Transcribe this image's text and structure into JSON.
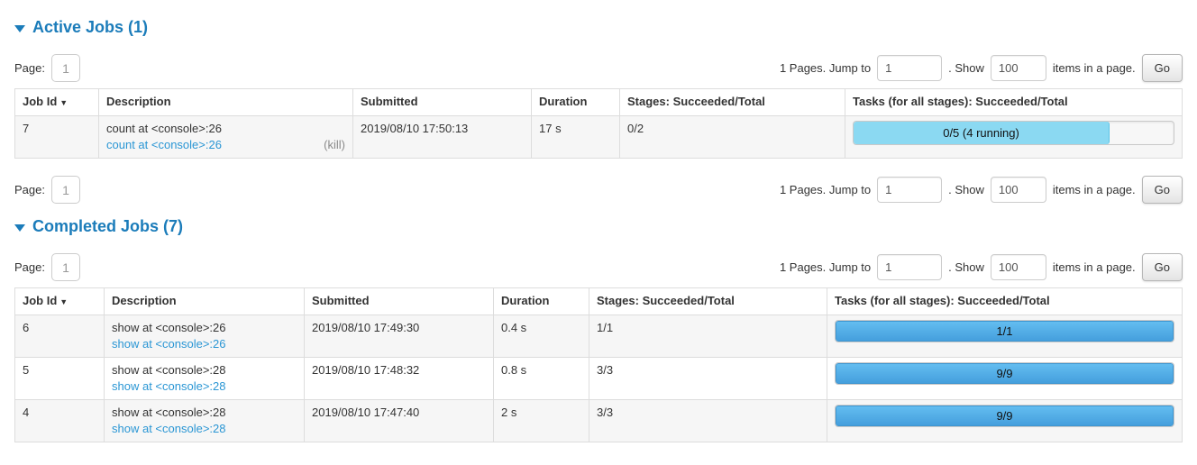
{
  "sections": {
    "active": {
      "title": "Active Jobs (1)"
    },
    "completed": {
      "title": "Completed Jobs (7)"
    }
  },
  "pagination": {
    "page_label": "Page:",
    "page_value": "1",
    "pages_text": "1 Pages. Jump to",
    "jump_value": "1",
    "show_text": ". Show",
    "show_value": "100",
    "items_text": "items in a page.",
    "go_label": "Go"
  },
  "active_table": {
    "sort_indicator": "▼",
    "headers": [
      "Job Id",
      "Description",
      "Submitted",
      "Duration",
      "Stages: Succeeded/Total",
      "Tasks (for all stages): Succeeded/Total"
    ],
    "rows": [
      {
        "job_id": "7",
        "description": "count at <console>:26",
        "description_link": "count at <console>:26",
        "kill": "(kill)",
        "submitted": "2019/08/10 17:50:13",
        "duration": "17 s",
        "stages": "0/2",
        "tasks_label": "0/5 (4 running)",
        "progress_pct": 80
      }
    ]
  },
  "completed_table": {
    "sort_indicator": "▼",
    "headers": [
      "Job Id",
      "Description",
      "Submitted",
      "Duration",
      "Stages: Succeeded/Total",
      "Tasks (for all stages): Succeeded/Total"
    ],
    "rows": [
      {
        "job_id": "6",
        "description": "show at <console>:26",
        "description_link": "show at <console>:26",
        "submitted": "2019/08/10 17:49:30",
        "duration": "0.4 s",
        "stages": "1/1",
        "tasks_label": "1/1",
        "progress_pct": 100
      },
      {
        "job_id": "5",
        "description": "show at <console>:28",
        "description_link": "show at <console>:28",
        "submitted": "2019/08/10 17:48:32",
        "duration": "0.8 s",
        "stages": "3/3",
        "tasks_label": "9/9",
        "progress_pct": 100
      },
      {
        "job_id": "4",
        "description": "show at <console>:28",
        "description_link": "show at <console>:28",
        "submitted": "2019/08/10 17:47:40",
        "duration": "2 s",
        "stages": "3/3",
        "tasks_label": "9/9",
        "progress_pct": 100
      }
    ]
  },
  "colors": {
    "section_title_blue": "#1b7cba",
    "link_blue": "#2a96d4",
    "running_bar_fill": "#8bd9f2",
    "completed_bar_fill_top": "#63bdf0",
    "completed_bar_fill_bottom": "#459fdd",
    "table_border": "#dddddd",
    "row_stripe": "#f6f6f6"
  }
}
